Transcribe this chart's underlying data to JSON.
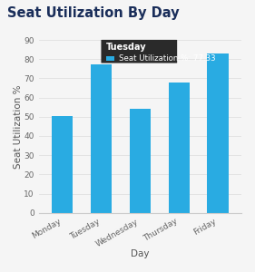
{
  "title": "Seat Utilization By Day",
  "categories": [
    "Monday",
    "Tuesday",
    "Wednesday",
    "Thursday",
    "Friday"
  ],
  "values": [
    50.5,
    77.33,
    54.0,
    68.0,
    83.0
  ],
  "bar_color": "#29ABE2",
  "xlabel": "Day",
  "ylabel": "Seat Utilization %",
  "ylim": [
    0,
    90
  ],
  "yticks": [
    0,
    10,
    20,
    30,
    40,
    50,
    60,
    70,
    80,
    90
  ],
  "background_color": "#f5f5f5",
  "title_color": "#1a2e5a",
  "title_fontsize": 10.5,
  "axis_label_fontsize": 7.5,
  "tick_fontsize": 6.5,
  "tooltip_day": "Tuesday",
  "tooltip_label": "Seat Utilization %: 77.33",
  "tooltip_bg": "#2a2a2a",
  "tooltip_text_color": "#ffffff",
  "grid_color": "#e0e0e0",
  "legend_color": "#29ABE2"
}
